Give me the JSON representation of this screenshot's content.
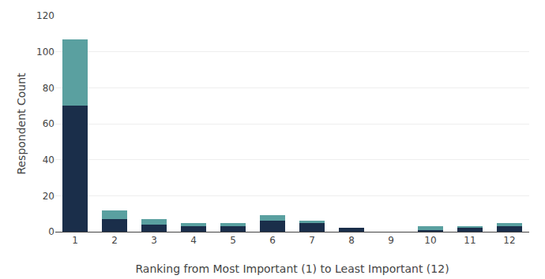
{
  "chart_data": {
    "type": "bar",
    "categories": [
      1,
      2,
      3,
      4,
      5,
      6,
      7,
      8,
      9,
      10,
      11,
      12
    ],
    "series": [
      {
        "color": "#1a2e4a",
        "values": [
          70,
          7,
          4,
          3,
          3,
          6,
          5,
          2,
          0,
          1,
          2,
          3
        ]
      },
      {
        "color": "#5aA0A0",
        "values": [
          37,
          5,
          3,
          2,
          2,
          3,
          1,
          0,
          0,
          2,
          1,
          2
        ]
      }
    ],
    "stacked": true,
    "xlabel": "Ranking from Most Important (1) to Least Important (12)",
    "ylabel": "Respondent Count",
    "ylim": [
      0,
      120
    ],
    "yticks": [
      0,
      20,
      40,
      60,
      80,
      100,
      120
    ],
    "grid": true
  }
}
